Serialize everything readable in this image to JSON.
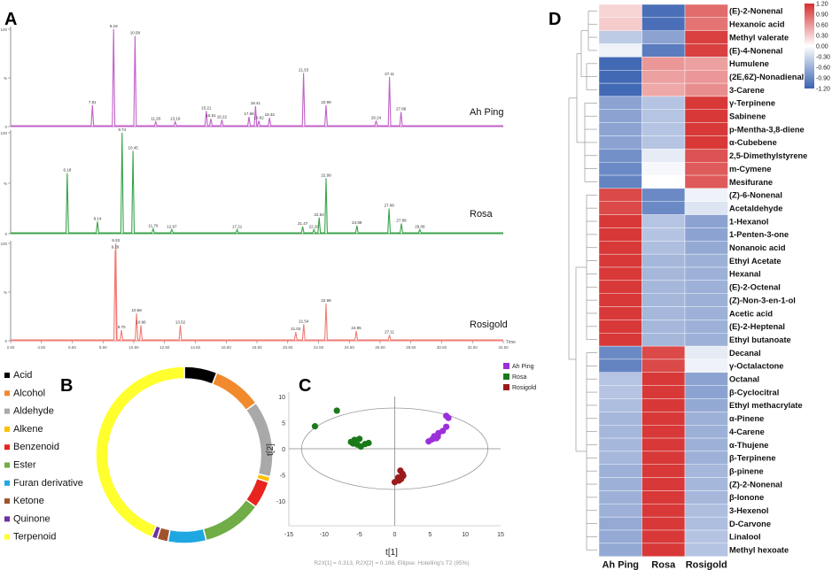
{
  "panels": {
    "a": "A",
    "b": "B",
    "c": "C",
    "d": "D"
  },
  "chart_data": [
    {
      "type": "line",
      "panel": "A",
      "x_axis_label": "Time",
      "xlim": [
        2.5,
        34.5
      ],
      "x_ticks": [
        2.5,
        4.5,
        6.5,
        8.5,
        10.5,
        12.5,
        14.5,
        16.5,
        18.5,
        20.5,
        22.5,
        24.5,
        26.5,
        28.5,
        30.5,
        32.5,
        34.5
      ],
      "x_tick_labels": [
        "2.50",
        "4.50",
        "6.50",
        "8.50",
        "10.50",
        "12.50",
        "14.50",
        "16.50",
        "18.50",
        "20.50",
        "22.50",
        "24.50",
        "26.50",
        "28.50",
        "30.50",
        "32.50",
        "34.50"
      ],
      "y_ticks": [
        0,
        50,
        100
      ],
      "y_tick_labels": [
        "0",
        "%",
        "100"
      ],
      "traces": [
        {
          "name": "Ah Ping",
          "color": "#c060c8",
          "peaks": [
            {
              "x": 7.81,
              "y": 22,
              "label": "7.81"
            },
            {
              "x": 9.19,
              "y": 100,
              "label": "9.19"
            },
            {
              "x": 10.58,
              "y": 93,
              "label": "10.58"
            },
            {
              "x": 11.93,
              "y": 5,
              "label": "11.93"
            },
            {
              "x": 13.19,
              "y": 5,
              "label": "13.19"
            },
            {
              "x": 15.21,
              "y": 16,
              "label": "15.21"
            },
            {
              "x": 15.51,
              "y": 8,
              "label": "15.51"
            },
            {
              "x": 16.22,
              "y": 7,
              "label": "16.22"
            },
            {
              "x": 17.98,
              "y": 10,
              "label": "17.98"
            },
            {
              "x": 18.41,
              "y": 21,
              "label": "18.41"
            },
            {
              "x": 18.62,
              "y": 6,
              "label": "18.62"
            },
            {
              "x": 19.32,
              "y": 9,
              "label": "19.32"
            },
            {
              "x": 21.53,
              "y": 55,
              "label": "21.53"
            },
            {
              "x": 22.99,
              "y": 22,
              "label": "22.99"
            },
            {
              "x": 26.24,
              "y": 6,
              "label": "26.24"
            },
            {
              "x": 27.11,
              "y": 51,
              "label": "27.11"
            },
            {
              "x": 27.86,
              "y": 15,
              "label": "27.86"
            }
          ]
        },
        {
          "name": "Rosa",
          "color": "#3aa34a",
          "peaks": [
            {
              "x": 6.18,
              "y": 60,
              "label": "6.18"
            },
            {
              "x": 8.14,
              "y": 12,
              "label": "8.14"
            },
            {
              "x": 9.74,
              "y": 100,
              "label": "9.74"
            },
            {
              "x": 10.45,
              "y": 82,
              "label": "10.45"
            },
            {
              "x": 11.76,
              "y": 5,
              "label": "11.76"
            },
            {
              "x": 12.97,
              "y": 4,
              "label": "12.97"
            },
            {
              "x": 17.21,
              "y": 4,
              "label": "17.21"
            },
            {
              "x": 21.47,
              "y": 7,
              "label": "21.47"
            },
            {
              "x": 22.2,
              "y": 4,
              "label": "22.20"
            },
            {
              "x": 22.54,
              "y": 16,
              "label": "22.54"
            },
            {
              "x": 22.99,
              "y": 55,
              "label": "22.99"
            },
            {
              "x": 24.99,
              "y": 8,
              "label": "24.99"
            },
            {
              "x": 27.08,
              "y": 25,
              "label": "27.08"
            },
            {
              "x": 27.88,
              "y": 10,
              "label": "27.88"
            },
            {
              "x": 29.08,
              "y": 4,
              "label": "29.08"
            }
          ]
        },
        {
          "name": "Rosigold",
          "color": "#f07c74",
          "peaks": [
            {
              "x": 9.29,
              "y": 93,
              "label": "9.29"
            },
            {
              "x": 9.33,
              "y": 100,
              "label": "9.33"
            },
            {
              "x": 9.7,
              "y": 11,
              "label": "9.70"
            },
            {
              "x": 10.68,
              "y": 28,
              "label": "10.68"
            },
            {
              "x": 10.96,
              "y": 16,
              "label": "10.96"
            },
            {
              "x": 13.52,
              "y": 16,
              "label": "13.52"
            },
            {
              "x": 21.02,
              "y": 9,
              "label": "21.02"
            },
            {
              "x": 21.54,
              "y": 17,
              "label": "21.54"
            },
            {
              "x": 22.99,
              "y": 38,
              "label": "22.99"
            },
            {
              "x": 24.95,
              "y": 10,
              "label": "24.95"
            },
            {
              "x": 27.11,
              "y": 6,
              "label": "27.11"
            }
          ]
        }
      ]
    },
    {
      "type": "pie",
      "subtype": "donut",
      "panel": "B",
      "categories": [
        "Acid",
        "Alcohol",
        "Aldehyde",
        "Alkene",
        "Benzenoid",
        "Ester",
        "Furan derivative",
        "Ketone",
        "Quinone",
        "Terpenoid"
      ],
      "values": [
        6,
        9,
        14,
        1,
        5,
        11,
        7,
        2,
        1,
        44
      ],
      "colors": [
        "#000000",
        "#f08a2c",
        "#a9a9a9",
        "#ffc000",
        "#e8241f",
        "#70ad47",
        "#1ea7e1",
        "#a0522d",
        "#7030a0",
        "#ffff2e"
      ],
      "legend_position": "left"
    },
    {
      "type": "scatter",
      "panel": "C",
      "xlabel": "t[1]",
      "ylabel": "t[2]",
      "xlim": [
        -15,
        15
      ],
      "ylim": [
        -10,
        10
      ],
      "x_ticks": [
        -15,
        -10,
        -5,
        0,
        5,
        10,
        15
      ],
      "y_ticks": [
        -10,
        -5,
        0,
        5,
        10
      ],
      "ellipse": {
        "rx": 13.2,
        "ry": 7.8
      },
      "footnote": "R2X[1] = 0.313, R2X[2] = 0.188, Ellipse: Hotelling's T2 (95%)",
      "series": [
        {
          "name": "Ah Ping",
          "color": "#9b30d9",
          "points": [
            [
              4.8,
              1.4
            ],
            [
              5.3,
              1.8
            ],
            [
              5.6,
              2.4
            ],
            [
              6.2,
              3.0
            ],
            [
              6.8,
              3.4
            ],
            [
              7.3,
              4.2
            ],
            [
              7.6,
              5.9
            ],
            [
              7.3,
              6.3
            ],
            [
              6.1,
              2.3
            ],
            [
              5.9,
              2.0
            ]
          ]
        },
        {
          "name": "Rosa",
          "color": "#1a7a1a",
          "points": [
            [
              -11.3,
              4.3
            ],
            [
              -8.2,
              7.3
            ],
            [
              -6.2,
              1.3
            ],
            [
              -5.7,
              1.7
            ],
            [
              -5.3,
              0.8
            ],
            [
              -5.0,
              1.9
            ],
            [
              -4.8,
              0.4
            ],
            [
              -4.2,
              0.9
            ],
            [
              -3.7,
              1.1
            ],
            [
              -5.9,
              1.0
            ]
          ]
        },
        {
          "name": "Rosigold",
          "color": "#9b1b1b",
          "points": [
            [
              0.0,
              -6.4
            ],
            [
              0.5,
              -5.5
            ],
            [
              0.8,
              -4.2
            ],
            [
              1.2,
              -5.2
            ],
            [
              0.9,
              -5.8
            ],
            [
              0.6,
              -6.1
            ],
            [
              1.1,
              -4.8
            ]
          ]
        }
      ]
    },
    {
      "type": "heatmap",
      "panel": "D",
      "columns": [
        "Ah Ping",
        "Rosa",
        "Rosigold"
      ],
      "colorbar": {
        "range": [
          -1.2,
          1.2
        ],
        "tick_labels": [
          "1.20",
          "0.90",
          "0.60",
          "0.30",
          "0.00",
          "-0.30",
          "-0.60",
          "-0.90",
          "-1.20"
        ],
        "high_color": "#d62f2f",
        "mid_color": "#ffffff",
        "low_color": "#3a62b1"
      },
      "rows": [
        {
          "label": "(E)-2-Nonenal",
          "values": [
            0.25,
            -1.1,
            0.85
          ]
        },
        {
          "label": "Hexanoic acid",
          "values": [
            0.3,
            -1.1,
            0.8
          ]
        },
        {
          "label": "Methyl valerate",
          "values": [
            -0.4,
            -0.7,
            1.1
          ]
        },
        {
          "label": "(E)-4-Nonenal",
          "values": [
            -0.1,
            -1.0,
            1.1
          ]
        },
        {
          "label": "Humulene",
          "values": [
            -1.15,
            0.6,
            0.55
          ]
        },
        {
          "label": "(2E,6Z)-Nonadienal",
          "values": [
            -1.15,
            0.55,
            0.6
          ]
        },
        {
          "label": "3-Carene",
          "values": [
            -1.15,
            0.5,
            0.65
          ]
        },
        {
          "label": "γ-Terpinene",
          "values": [
            -0.7,
            -0.45,
            1.15
          ]
        },
        {
          "label": "Sabinene",
          "values": [
            -0.7,
            -0.45,
            1.15
          ]
        },
        {
          "label": "p-Mentha-3,8-diene",
          "values": [
            -0.7,
            -0.45,
            1.15
          ]
        },
        {
          "label": "α-Cubebene",
          "values": [
            -0.7,
            -0.45,
            1.15
          ]
        },
        {
          "label": "2,5-Dimethylstyrene",
          "values": [
            -0.85,
            -0.15,
            1.0
          ]
        },
        {
          "label": "m-Cymene",
          "values": [
            -0.9,
            -0.05,
            0.95
          ]
        },
        {
          "label": "Mesifurane",
          "values": [
            -0.95,
            0.0,
            0.95
          ]
        },
        {
          "label": "(Z)-6-Nonenal",
          "values": [
            1.05,
            -0.9,
            -0.1
          ]
        },
        {
          "label": "Acetaldehyde",
          "values": [
            1.05,
            -0.9,
            -0.2
          ]
        },
        {
          "label": "1-Hexanol",
          "values": [
            1.15,
            -0.45,
            -0.7
          ]
        },
        {
          "label": "1-Penten-3-one",
          "values": [
            1.15,
            -0.45,
            -0.7
          ]
        },
        {
          "label": "Nonanoic acid",
          "values": [
            1.15,
            -0.5,
            -0.65
          ]
        },
        {
          "label": "Ethyl Acetate",
          "values": [
            1.15,
            -0.55,
            -0.6
          ]
        },
        {
          "label": "Hexanal",
          "values": [
            1.15,
            -0.55,
            -0.6
          ]
        },
        {
          "label": "(E)-2-Octenal",
          "values": [
            1.15,
            -0.55,
            -0.6
          ]
        },
        {
          "label": "(Z)-Non-3-en-1-ol",
          "values": [
            1.15,
            -0.55,
            -0.6
          ]
        },
        {
          "label": "Acetic acid",
          "values": [
            1.15,
            -0.55,
            -0.6
          ]
        },
        {
          "label": "(E)-2-Heptenal",
          "values": [
            1.15,
            -0.55,
            -0.6
          ]
        },
        {
          "label": "Ethyl butanoate",
          "values": [
            1.15,
            -0.55,
            -0.6
          ]
        },
        {
          "label": "Decanal",
          "values": [
            -0.9,
            1.05,
            -0.15
          ]
        },
        {
          "label": "γ-Octalactone",
          "values": [
            -0.95,
            1.05,
            -0.1
          ]
        },
        {
          "label": "Octanal",
          "values": [
            -0.45,
            1.15,
            -0.7
          ]
        },
        {
          "label": "β-Cyclocitral",
          "values": [
            -0.45,
            1.15,
            -0.7
          ]
        },
        {
          "label": "Ethyl methacrylate",
          "values": [
            -0.5,
            1.15,
            -0.65
          ]
        },
        {
          "label": "α-Pinene",
          "values": [
            -0.55,
            1.15,
            -0.6
          ]
        },
        {
          "label": "4-Carene",
          "values": [
            -0.55,
            1.15,
            -0.6
          ]
        },
        {
          "label": "α-Thujene",
          "values": [
            -0.55,
            1.15,
            -0.6
          ]
        },
        {
          "label": "β-Terpinene",
          "values": [
            -0.55,
            1.15,
            -0.6
          ]
        },
        {
          "label": "β-pinene",
          "values": [
            -0.6,
            1.15,
            -0.55
          ]
        },
        {
          "label": "(Z)-2-Nonenal",
          "values": [
            -0.6,
            1.15,
            -0.55
          ]
        },
        {
          "label": "β-Ionone",
          "values": [
            -0.6,
            1.15,
            -0.55
          ]
        },
        {
          "label": "3-Hexenol",
          "values": [
            -0.6,
            1.15,
            -0.5
          ]
        },
        {
          "label": "D-Carvone",
          "values": [
            -0.65,
            1.15,
            -0.5
          ]
        },
        {
          "label": "Linalool",
          "values": [
            -0.65,
            1.15,
            -0.45
          ]
        },
        {
          "label": "Methyl hexoate",
          "values": [
            -0.65,
            1.15,
            -0.45
          ]
        }
      ]
    }
  ]
}
